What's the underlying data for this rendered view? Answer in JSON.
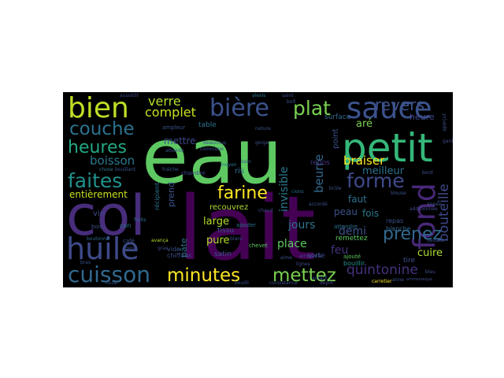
{
  "word_cloud": {
    "background": "#000000",
    "words": [
      {
        "text": "eau",
        "color": "#5ec962"
      },
      {
        "text": "lait",
        "color": "#440154"
      },
      {
        "text": "col",
        "color": "#472d7b"
      },
      {
        "text": "petit",
        "color": "#35b779"
      },
      {
        "text": "sauce",
        "color": "#3b528b"
      },
      {
        "text": "bien",
        "color": "#bddf26"
      },
      {
        "text": "bière",
        "color": "#3b528b"
      },
      {
        "text": "fond",
        "color": "#482878"
      },
      {
        "text": "huile",
        "color": "#3e4a89"
      },
      {
        "text": "cuisson",
        "color": "#31688e"
      },
      {
        "text": "couche",
        "color": "#2c728e"
      },
      {
        "text": "heures",
        "color": "#22a884"
      },
      {
        "text": "faites",
        "color": "#21918c"
      },
      {
        "text": "plat",
        "color": "#7ad151"
      },
      {
        "text": "minutes",
        "color": "#fde725"
      },
      {
        "text": "mettez",
        "color": "#7ad151"
      },
      {
        "text": "forme",
        "color": "#3e4a89"
      },
      {
        "text": "farine",
        "color": "#fde725"
      },
      {
        "text": "prenez",
        "color": "#31688e"
      },
      {
        "text": "revers",
        "color": "#3b528b"
      },
      {
        "text": "verre",
        "color": "#b5de2b"
      },
      {
        "text": "complet",
        "color": "#c8e020"
      },
      {
        "text": "quintonine",
        "color": "#46327e"
      },
      {
        "text": "bouteille",
        "color": "#3e4a89"
      },
      {
        "text": "beurre",
        "color": "#31688e"
      },
      {
        "text": "braiser",
        "color": "#fde725"
      },
      {
        "text": "invisible",
        "color": "#2a788e"
      },
      {
        "text": "boisson",
        "color": "#2a788e"
      },
      {
        "text": "entièrement",
        "color": "#c8e020"
      },
      {
        "text": "meilleur",
        "color": "#2c728e"
      },
      {
        "text": "cuire",
        "color": "#addc30"
      },
      {
        "text": "demi",
        "color": "#3b528b"
      },
      {
        "text": "jours",
        "color": "#2c728e"
      },
      {
        "text": "place",
        "color": "#5ec962"
      },
      {
        "text": "large",
        "color": "#b5de2b"
      },
      {
        "text": "pure",
        "color": "#b5de2b"
      },
      {
        "text": "faut",
        "color": "#2c728e"
      },
      {
        "text": "peau",
        "color": "#3b528b"
      },
      {
        "text": "fois",
        "color": "#2a788e"
      },
      {
        "text": "feu",
        "color": "#46327e"
      },
      {
        "text": "mettre",
        "color": "#3e4a89"
      },
      {
        "text": "heure",
        "color": "#3e4a89"
      },
      {
        "text": "point",
        "color": "#3b528b"
      },
      {
        "text": "pâte",
        "color": "#2c728e"
      },
      {
        "text": "prend",
        "color": "#3b528b"
      },
      {
        "text": "recouvrez",
        "color": "#addc30"
      },
      {
        "text": "aré",
        "color": "#7ad151"
      },
      {
        "text": "repos",
        "color": "#46327e"
      },
      {
        "text": "surface",
        "color": "#31688e"
      },
      {
        "text": "remettez",
        "color": "#5ec962"
      },
      {
        "text": "satin",
        "color": "#3b528b"
      },
      {
        "text": "tissu",
        "color": "#3b528b"
      },
      {
        "text": "ris",
        "color": "#2c728e"
      },
      {
        "text": "vin",
        "color": "#3e4a89"
      },
      {
        "text": "table",
        "color": "#2c728e"
      },
      {
        "text": "repas",
        "color": "#3b528b"
      },
      {
        "text": "blanche",
        "color": "#31688e"
      },
      {
        "text": "tire",
        "color": "#3b528b"
      },
      {
        "text": "sorte",
        "color": "#3e4a89"
      },
      {
        "text": "vide",
        "color": "#3b528b"
      },
      {
        "text": "chiffons",
        "color": "#3e4a89"
      },
      {
        "text": "chevet",
        "color": "#5ec962"
      },
      {
        "text": "ajouté",
        "color": "#5ec962"
      },
      {
        "text": "bouillir",
        "color": "#21918c"
      },
      {
        "text": "attendre",
        "color": "#2c728e"
      },
      {
        "text": "ajouter",
        "color": "#2c728e"
      },
      {
        "text": "récipient",
        "color": "#2c728e"
      },
      {
        "text": "carretier",
        "color": "#fde725"
      },
      {
        "text": "ammoniaque",
        "color": "#3e4a89"
      },
      {
        "text": "café",
        "color": "#3b528b"
      },
      {
        "text": "con",
        "color": "#2c728e"
      },
      {
        "text": "bois",
        "color": "#3b528b"
      },
      {
        "text": "chambre",
        "color": "#3e4a89"
      },
      {
        "text": "ampleur",
        "color": "#3b528b"
      },
      {
        "text": "beaucoup",
        "color": "#3b528b"
      },
      {
        "text": "bain",
        "color": "#3b528b"
      },
      {
        "text": "cions",
        "color": "#2c728e"
      },
      {
        "text": "accordé",
        "color": "#3b528b"
      },
      {
        "text": "aussitôt",
        "color": "#3e4a89"
      },
      {
        "text": "bouillant",
        "color": "#3b528b"
      },
      {
        "text": "boutonné",
        "color": "#31688e"
      },
      {
        "text": "avança",
        "color": "#b5de2b"
      },
      {
        "text": "chose",
        "color": "#2c728e"
      },
      {
        "text": "aperçut",
        "color": "#3b528b"
      },
      {
        "text": "garde",
        "color": "#3e4a89"
      },
      {
        "text": "blouse",
        "color": "#3b528b"
      },
      {
        "text": "brûle",
        "color": "#3b528b"
      },
      {
        "text": "arrogante",
        "color": "#3e4a89"
      },
      {
        "text": "saint",
        "color": "#3b528b"
      },
      {
        "text": "alexis",
        "color": "#2c728e"
      },
      {
        "text": "bolt",
        "color": "#3b528b"
      },
      {
        "text": "aime",
        "color": "#3b528b"
      },
      {
        "text": "lignes",
        "color": "#3e4a89"
      },
      {
        "text": "bleu",
        "color": "#3b528b"
      },
      {
        "text": "additionnée",
        "color": "#3e4a89"
      },
      {
        "text": "année",
        "color": "#3b528b"
      },
      {
        "text": "fruits",
        "color": "#2c728e"
      },
      {
        "text": "atteinte",
        "color": "#3b528b"
      },
      {
        "text": "gras",
        "color": "#3e4a89"
      },
      {
        "text": "coins",
        "color": "#3b528b"
      },
      {
        "text": "blanc",
        "color": "#3b528b"
      },
      {
        "text": "anne",
        "color": "#3b528b"
      },
      {
        "text": "autant",
        "color": "#3b528b"
      },
      {
        "text": "dépôt",
        "color": "#3e4a89"
      },
      {
        "text": "consistance",
        "color": "#3b528b"
      },
      {
        "text": "bouilli",
        "color": "#3b528b"
      },
      {
        "text": "gorge",
        "color": "#3b528b"
      },
      {
        "text": "commune",
        "color": "#3b528b"
      },
      {
        "text": "chaud",
        "color": "#3e4a89"
      },
      {
        "text": "fraîche",
        "color": "#3b528b"
      },
      {
        "text": "huilé",
        "color": "#3b528b"
      },
      {
        "text": "nature",
        "color": "#3b528b"
      },
      {
        "text": "moyen",
        "color": "#2c728e"
      },
      {
        "text": "dedans",
        "color": "#3b528b"
      },
      {
        "text": "bord",
        "color": "#3b528b"
      },
      {
        "text": "bras",
        "color": "#3b528b"
      }
    ]
  }
}
